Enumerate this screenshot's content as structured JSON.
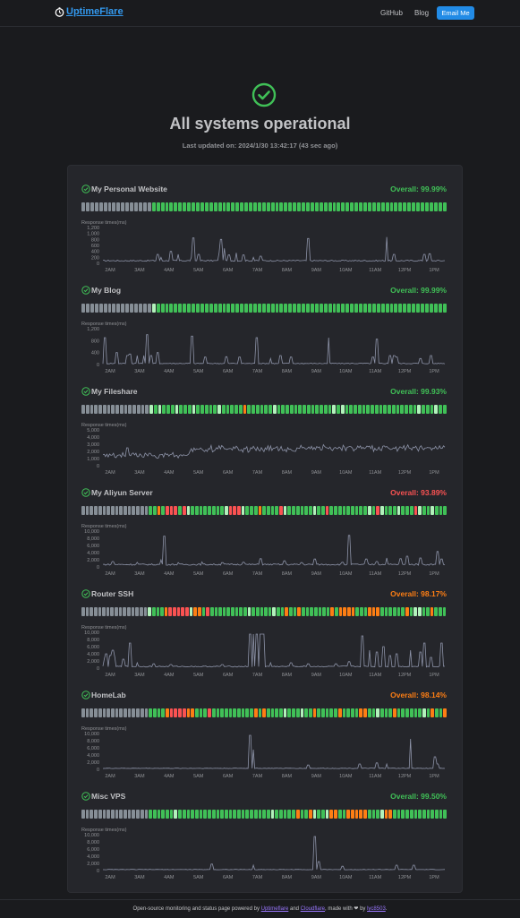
{
  "header": {
    "logo_text": "UptimeFlare",
    "nav": [
      {
        "label": "GitHub"
      },
      {
        "label": "Blog"
      }
    ],
    "email_label": "Email Me"
  },
  "hero": {
    "title": "All systems operational",
    "updated": "Last updated on: 2024/1/30 13:42:17 (43 sec ago)"
  },
  "colors": {
    "up": "#40c057",
    "up_light": "#b2f2bb",
    "down": "#fa5252",
    "degraded": "#fd7e14",
    "no_data": "#868e96",
    "line": "#8d93a8",
    "good": "#40c057",
    "bad": "#fa5252",
    "warn": "#fd7e14"
  },
  "x_ticks": [
    "2AM",
    "3AM",
    "4AM",
    "5AM",
    "6AM",
    "7AM",
    "8AM",
    "9AM",
    "10AM",
    "11AM",
    "12PM",
    "1PM"
  ],
  "response_label": "Response times(ms)",
  "monitors": [
    {
      "name": "My Personal Website",
      "overall": "Overall: 99.99%",
      "status": "good",
      "yticks": [
        "1,200",
        "1,000",
        "800",
        "600",
        "400",
        "200",
        "0"
      ],
      "ymax": 1200,
      "pattern": "ggggggggggggggggUUUUUUUUUUUUUUUUUUUUUUUUUUUUUUUUUUUUUUUUUUUUUUUUUUUUUUUUUUUUUUUUUUU",
      "series": {
        "base": 80,
        "noise": 40,
        "spikes": [
          [
            0.16,
            300
          ],
          [
            0.17,
            200
          ],
          [
            0.2,
            400
          ],
          [
            0.22,
            300
          ],
          [
            0.26,
            200
          ],
          [
            0.265,
            850
          ],
          [
            0.28,
            300
          ],
          [
            0.34,
            350
          ],
          [
            0.345,
            800
          ],
          [
            0.355,
            500
          ],
          [
            0.37,
            280
          ],
          [
            0.39,
            350
          ],
          [
            0.41,
            280
          ],
          [
            0.44,
            200
          ],
          [
            0.46,
            240
          ],
          [
            0.6,
            830
          ],
          [
            0.83,
            880
          ],
          [
            0.85,
            300
          ],
          [
            0.94,
            300
          ],
          [
            0.955,
            320
          ]
        ]
      }
    },
    {
      "name": "My Blog",
      "overall": "Overall: 99.99%",
      "status": "good",
      "yticks": [
        "1,200",
        "800",
        "400",
        "0"
      ],
      "ymax": 1200,
      "pattern": "ggggggggggggggggLUUUUUUUUUUUUUUUUUUUUUUUUUUUUUUUUUUUUUUUUUUUUUUUUUUUUUUUUUUUUUUUUUU",
      "series": {
        "base": 30,
        "noise": 30,
        "spikes": [
          [
            0.005,
            900
          ],
          [
            0.04,
            400
          ],
          [
            0.07,
            300
          ],
          [
            0.08,
            350
          ],
          [
            0.1,
            300
          ],
          [
            0.12,
            300
          ],
          [
            0.13,
            1000
          ],
          [
            0.14,
            300
          ],
          [
            0.16,
            400
          ],
          [
            0.26,
            950
          ],
          [
            0.3,
            250
          ],
          [
            0.36,
            260
          ],
          [
            0.4,
            250
          ],
          [
            0.45,
            900
          ],
          [
            0.49,
            200
          ],
          [
            0.52,
            300
          ],
          [
            0.55,
            250
          ],
          [
            0.66,
            900
          ],
          [
            0.79,
            250
          ],
          [
            0.8,
            850
          ],
          [
            0.84,
            300
          ],
          [
            0.85,
            300
          ],
          [
            0.86,
            250
          ],
          [
            0.93,
            200
          ],
          [
            0.96,
            300
          ]
        ]
      }
    },
    {
      "name": "My Fileshare",
      "overall": "Overall: 99.93%",
      "status": "good",
      "yticks": [
        "5,000",
        "4,000",
        "3,000",
        "2,000",
        "1,000",
        "0"
      ],
      "ymax": 5000,
      "pattern": "ggggggggggggggggLULUUULUUULUUUUULUUUUUOUUUUUULUUUUUUUUUUUUULULUUUUUUUUUUUUUUUUULUUULUU",
      "series": {
        "base": 1400,
        "noise": 500,
        "spikes": [
          [
            0.07,
            2500
          ],
          [
            0.13,
            1200
          ],
          [
            0.26,
            1500
          ],
          [
            0.3,
            1500
          ],
          [
            0.32,
            1800
          ],
          [
            0.38,
            1600
          ],
          [
            0.45,
            1700
          ],
          [
            0.51,
            1600
          ],
          [
            0.6,
            1500
          ],
          [
            0.64,
            2000
          ],
          [
            0.65,
            1900
          ],
          [
            0.68,
            1500
          ],
          [
            0.72,
            1500
          ],
          [
            0.78,
            1600
          ],
          [
            0.86,
            1800
          ],
          [
            0.93,
            1700
          ],
          [
            0.98,
            1700
          ]
        ],
        "trend": [
          [
            0,
            0
          ],
          [
            0.25,
            0
          ],
          [
            0.26,
            800
          ],
          [
            1,
            1000
          ]
        ]
      }
    },
    {
      "name": "My Aliyun Server",
      "overall": "Overall: 93.89%",
      "status": "bad",
      "yticks": [
        "10,000",
        "8,000",
        "6,000",
        "4,000",
        "2,000",
        "0"
      ],
      "ymax": 10000,
      "pattern": "ggggggggggggggggUUOUDDDUDLUUUUUUUULDDDLUUUOUUUUDLUUUUUULUUDUUUUUUUUULUDLUUULUUUDLUULUUU",
      "series": {
        "base": 600,
        "noise": 400,
        "spikes": [
          [
            0.03,
            1500
          ],
          [
            0.1,
            1300
          ],
          [
            0.17,
            2000
          ],
          [
            0.18,
            8600
          ],
          [
            0.22,
            1200
          ],
          [
            0.29,
            1400
          ],
          [
            0.35,
            1200
          ],
          [
            0.41,
            1300
          ],
          [
            0.46,
            2300
          ],
          [
            0.53,
            1700
          ],
          [
            0.58,
            1200
          ],
          [
            0.62,
            2200
          ],
          [
            0.7,
            1300
          ],
          [
            0.72,
            8800
          ],
          [
            0.77,
            2200
          ],
          [
            0.8,
            1500
          ],
          [
            0.83,
            2500
          ],
          [
            0.87,
            2300
          ],
          [
            0.89,
            3000
          ],
          [
            0.93,
            2500
          ],
          [
            0.98,
            4300
          ],
          [
            0.99,
            2200
          ]
        ]
      }
    },
    {
      "name": "Router SSH",
      "overall": "Overall: 98.17%",
      "status": "warn",
      "yticks": [
        "10,000",
        "8,000",
        "6,000",
        "4,000",
        "2,000",
        "0"
      ],
      "ymax": 10000,
      "pattern": "ggggggggggggggggLUUUODDDDDLOOUDUUUUUUUUULUUUUULUUOUUOUUUUUUUOUOOOOUUUOOOUUUUUUOULLUUOUUU",
      "series": {
        "base": 400,
        "noise": 300,
        "spikes": [
          [
            0.005,
            2500
          ],
          [
            0.01,
            4000
          ],
          [
            0.02,
            3500
          ],
          [
            0.03,
            5000
          ],
          [
            0.035,
            3000
          ],
          [
            0.06,
            2500
          ],
          [
            0.08,
            7000
          ],
          [
            0.1,
            1500
          ],
          [
            0.15,
            1200
          ],
          [
            0.2,
            1000
          ],
          [
            0.35,
            1000
          ],
          [
            0.43,
            9500
          ],
          [
            0.44,
            9500
          ],
          [
            0.45,
            9500
          ],
          [
            0.46,
            9500
          ],
          [
            0.47,
            9500
          ],
          [
            0.49,
            1500
          ],
          [
            0.55,
            1500
          ],
          [
            0.6,
            1200
          ],
          [
            0.68,
            1200
          ],
          [
            0.72,
            1800
          ],
          [
            0.76,
            9000
          ],
          [
            0.78,
            5000
          ],
          [
            0.8,
            4500
          ],
          [
            0.82,
            6000
          ],
          [
            0.84,
            3500
          ],
          [
            0.86,
            4000
          ],
          [
            0.9,
            5000
          ],
          [
            0.93,
            4500
          ],
          [
            0.94,
            7000
          ],
          [
            0.96,
            3000
          ],
          [
            0.99,
            7000
          ]
        ]
      }
    },
    {
      "name": "HomeLab",
      "overall": "Overall: 98.14%",
      "status": "warn",
      "yticks": [
        "10,000",
        "8,000",
        "6,000",
        "4,000",
        "2,000",
        "0"
      ],
      "ymax": 10000,
      "pattern": "ggggggggggggggggUUUUODDDDOOUUUDUUUUUUUUUUOUOUUUULUUULUUOUUUUUOUUUUOOUULUUUOUUUUUULUOUUO",
      "series": {
        "base": 250,
        "noise": 150,
        "spikes": [
          [
            0.43,
            9500
          ],
          [
            0.44,
            5500
          ],
          [
            0.6,
            1200
          ],
          [
            0.75,
            1500
          ],
          [
            0.8,
            1800
          ],
          [
            0.83,
            1500
          ],
          [
            0.9,
            8500
          ],
          [
            0.97,
            3500
          ],
          [
            0.98,
            1500
          ]
        ]
      }
    },
    {
      "name": "Misc VPS",
      "overall": "Overall: 99.50%",
      "status": "good",
      "yticks": [
        "10,000",
        "8,000",
        "6,000",
        "4,000",
        "2,000",
        "0"
      ],
      "ymax": 10000,
      "pattern": "ggggggggggggggggUUUUUULUUUUUUUUUUUUUUUUUUUUUULUUUUUOUUOLUULOOUUOOOOOUUULOOUUUUUUUUUUUUU",
      "series": {
        "base": 250,
        "noise": 120,
        "spikes": [
          [
            0.32,
            1800
          ],
          [
            0.44,
            1500
          ],
          [
            0.62,
            9500
          ],
          [
            0.63,
            2500
          ],
          [
            0.7,
            1200
          ],
          [
            0.86,
            1500
          ],
          [
            0.91,
            1500
          ]
        ]
      }
    }
  ],
  "footer": {
    "prefix": "Open-source monitoring and status page powered by ",
    "link1": "Uptimeflare",
    "mid": " and ",
    "link2": "Cloudflare",
    "made": ", made with ",
    "heart": "❤",
    "by": " by ",
    "link3": "lyc8503",
    "end": "."
  }
}
